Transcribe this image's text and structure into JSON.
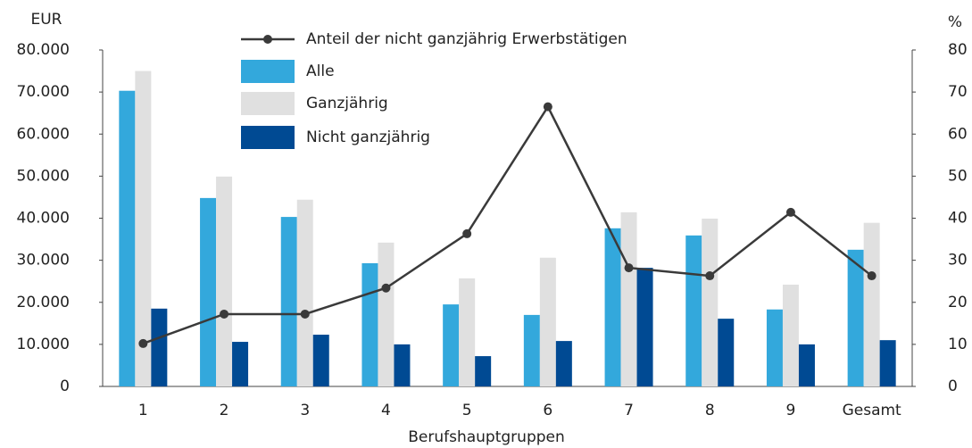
{
  "chart_data": {
    "type": "bar",
    "y_unit": "EUR",
    "y2_unit": "%",
    "x_label": "Berufshauptgruppen",
    "categories": [
      "1",
      "2",
      "3",
      "4",
      "5",
      "6",
      "7",
      "8",
      "9",
      "Gesamt"
    ],
    "series": [
      {
        "name": "Anteil der nicht ganzjährig Erwerbstätigen",
        "type": "line",
        "axis": "y2",
        "color": "#3a3a3a",
        "values": [
          10.2,
          17.2,
          17.2,
          23.4,
          36.3,
          66.5,
          28.2,
          26.3,
          41.4,
          26.3
        ]
      },
      {
        "name": "Alle",
        "type": "bar",
        "color": "#33a8dc",
        "values": [
          70300,
          44800,
          40300,
          29300,
          19500,
          17000,
          37600,
          35900,
          18300,
          32500
        ]
      },
      {
        "name": "Ganzjährig",
        "type": "bar",
        "color": "#e0e0e0",
        "values": [
          75000,
          49900,
          44400,
          34200,
          25700,
          30600,
          41400,
          39900,
          24200,
          38900
        ]
      },
      {
        "name": "Nicht ganzjährig",
        "type": "bar",
        "color": "#004a93",
        "values": [
          18500,
          10600,
          12300,
          10000,
          7200,
          10800,
          28200,
          16100,
          10000,
          11000
        ]
      }
    ],
    "ylim": [
      0,
      80000
    ],
    "yticks": [
      0,
      {
        "value": 10000,
        "label": "10.000"
      },
      {
        "value": 20000,
        "label": "20.000"
      },
      {
        "value": 30000,
        "label": "30.000"
      },
      {
        "value": 40000,
        "label": "40.000"
      },
      {
        "value": 50000,
        "label": "50.000"
      },
      {
        "value": 60000,
        "label": "60.000"
      },
      {
        "value": 70000,
        "label": "70.000"
      },
      {
        "value": 80000,
        "label": "80.000"
      }
    ],
    "y2lim": [
      0,
      80
    ],
    "y2ticks": [
      0,
      10,
      20,
      30,
      40,
      50,
      60,
      70,
      80
    ],
    "grid": false
  }
}
